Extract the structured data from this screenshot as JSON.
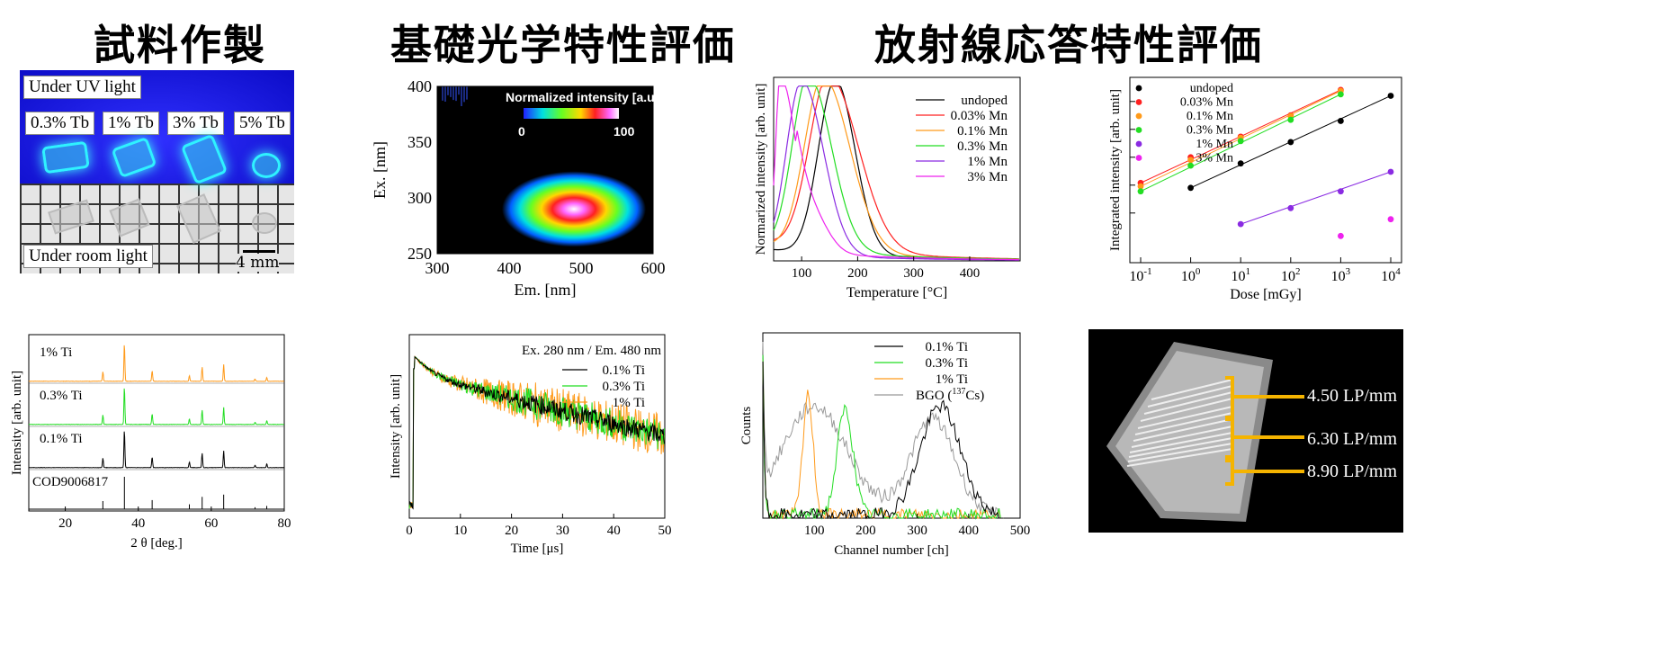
{
  "headings": {
    "sample_prep": "試料作製",
    "optical_eval": "基礎光学特性評価",
    "radiation_eval": "放射線応答特性評価"
  },
  "photo_uv": {
    "uv_label": "Under UV light",
    "room_label": "Under room light",
    "scale_label": "4 mm",
    "samples": [
      "0.3% Tb",
      "1% Tb",
      "3% Tb",
      "5% Tb"
    ]
  },
  "heatmap": {
    "colorbar_title": "Normalized intensity [a.u.]",
    "colorbar_min": "0",
    "colorbar_max": "100"
  },
  "xray_image": {
    "labels": [
      "4.50 LP/mm",
      "6.30 LP/mm",
      "8.90 LP/mm"
    ],
    "accent": "#f5b400"
  },
  "chart_data": [
    {
      "id": "excitation-emission-map",
      "type": "heatmap",
      "xlabel": "Em. [nm]",
      "ylabel": "Ex. [nm]",
      "xlim": [
        300,
        600
      ],
      "ylim": [
        250,
        400
      ],
      "xticks": [
        300,
        400,
        500,
        600
      ],
      "yticks": [
        250,
        300,
        350,
        400
      ],
      "peak": {
        "x": 490,
        "y": 290
      }
    },
    {
      "id": "glow-curves",
      "type": "line",
      "xlabel": "Temperature [°C]",
      "ylabel": "Normarized intensity [arb. unit]",
      "xlim": [
        50,
        490
      ],
      "ylim": [
        0,
        1.05
      ],
      "xticks": [
        100,
        200,
        300,
        400
      ],
      "legend": "top-right",
      "series": [
        {
          "name": "undoped",
          "color": "#000000",
          "peak": 160,
          "w1": 42,
          "w2": 50,
          "tail": 0.03
        },
        {
          "name": "0.03% Mn",
          "color": "#ff2020",
          "peak": 148,
          "w1": 48,
          "w2": 75,
          "tail": 0.05
        },
        {
          "name": "0.1% Mn",
          "color": "#ff9a1a",
          "peak": 138,
          "w1": 46,
          "w2": 68,
          "tail": 0.04
        },
        {
          "name": "0.3% Mn",
          "color": "#22dd22",
          "peak": 112,
          "w1": 40,
          "w2": 58,
          "tail": 0.04
        },
        {
          "name": "1% Mn",
          "color": "#8a2be2",
          "peak": 100,
          "w1": 38,
          "w2": 55,
          "tail": 0.02
        },
        {
          "name": "3% Mn",
          "color": "#ee22ee",
          "peak": 62,
          "w1": 12,
          "w2": 40,
          "tail": 0.03
        }
      ]
    },
    {
      "id": "dose-response",
      "type": "scatter",
      "xlabel": "Dose [mGy]",
      "ylabel": "Integrated intensity [arb. unit]",
      "xscale": "log",
      "xticks": [
        "10^-1",
        "10^0",
        "10^1",
        "10^2",
        "10^3",
        "10^4"
      ],
      "legend": "top-left",
      "series": [
        {
          "name": "undoped",
          "color": "#000000",
          "x": [
            1,
            10,
            100,
            1000,
            10000
          ],
          "y": [
            0.08,
            0.6,
            3.5,
            20,
            160
          ],
          "fit": true
        },
        {
          "name": "0.03% Mn",
          "color": "#ff2020",
          "x": [
            0.1,
            1,
            10,
            100,
            1000
          ],
          "y": [
            0.12,
            1.0,
            5.5,
            32,
            260
          ],
          "fit": true
        },
        {
          "name": "0.1% Mn",
          "color": "#ff9a1a",
          "x": [
            0.1,
            1,
            10,
            100,
            1000
          ],
          "y": [
            0.09,
            0.8,
            5.0,
            30,
            240
          ],
          "fit": true
        },
        {
          "name": "0.3% Mn",
          "color": "#22dd22",
          "x": [
            0.1,
            1,
            10,
            100,
            1000
          ],
          "y": [
            0.06,
            0.5,
            3.8,
            22,
            180
          ],
          "fit": true
        },
        {
          "name": "1% Mn",
          "color": "#8a2be2",
          "x": [
            10,
            100,
            1000,
            10000
          ],
          "y": [
            0.004,
            0.015,
            0.06,
            0.3
          ],
          "fit": true
        },
        {
          "name": "3% Mn",
          "color": "#ee22ee",
          "x": [
            1000
          ],
          "y": [
            0.0015
          ],
          "fit": false
        }
      ],
      "extra_point": {
        "x": 10000,
        "y": 0.006,
        "color": "#ee22ee"
      }
    },
    {
      "id": "xrd",
      "type": "line",
      "xlabel": "2 θ [deg.]",
      "ylabel": "Intensity [arb. unit]",
      "xlim": [
        10,
        80
      ],
      "xticks": [
        20,
        40,
        60,
        80
      ],
      "peaks": [
        30.3,
        36.2,
        43.8,
        54.0,
        57.5,
        63.4,
        72.0,
        75.2
      ],
      "peak_heights": [
        0.25,
        1.0,
        0.28,
        0.15,
        0.38,
        0.45,
        0.06,
        0.1
      ],
      "series": [
        {
          "name": "1% Ti",
          "color": "#ff9a1a"
        },
        {
          "name": "0.3% Ti",
          "color": "#22dd22"
        },
        {
          "name": "0.1% Ti",
          "color": "#000000"
        },
        {
          "name": "COD9006817",
          "color": "#000000"
        }
      ]
    },
    {
      "id": "decay",
      "type": "line",
      "title": "Ex. 280 nm / Em. 480 nm",
      "xlabel": "Time [μs]",
      "ylabel": "Intensity [arb. unit]",
      "xlim": [
        0,
        50
      ],
      "xticks": [
        0,
        10,
        20,
        30,
        40,
        50
      ],
      "legend": "top-right",
      "series": [
        {
          "name": "0.1% Ti",
          "color": "#000000"
        },
        {
          "name": "0.3% Ti",
          "color": "#22dd22"
        },
        {
          "name": "1% Ti",
          "color": "#ff9a1a"
        }
      ]
    },
    {
      "id": "pulse-height",
      "type": "line",
      "xlabel": "Channel number [ch]",
      "ylabel": "Counts",
      "xlim": [
        0,
        500
      ],
      "xticks": [
        100,
        200,
        300,
        400,
        500
      ],
      "legend": "top-right",
      "series": [
        {
          "name": "0.1% Ti",
          "color": "#000000",
          "peak": 345,
          "sigma": 55,
          "amp": 0.62
        },
        {
          "name": "0.3% Ti",
          "color": "#22dd22",
          "peak": 160,
          "sigma": 22,
          "amp": 0.6
        },
        {
          "name": "1% Ti",
          "color": "#ff9a1a",
          "peak": 88,
          "sigma": 14,
          "amp": 0.68
        },
        {
          "name": "BGO (137Cs)",
          "color": "#999999",
          "peak": 310,
          "sigma": 120,
          "amp": 0.7
        }
      ]
    }
  ]
}
